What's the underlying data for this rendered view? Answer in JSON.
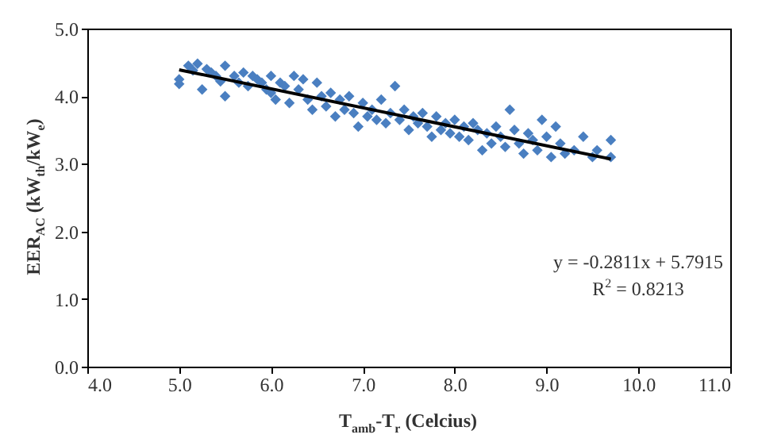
{
  "chart_data": {
    "type": "scatter",
    "xlabel": "T$_{amb}$-T$_{r}$ (Celcius)",
    "ylabel": "EER$_{AC}$ (kW$_{th}$/kW$_{e}$)",
    "xlim": [
      4,
      11
    ],
    "ylim": [
      0,
      5
    ],
    "xticks": [
      {
        "value": 4,
        "label": "4.0"
      },
      {
        "value": 5,
        "label": "5.0"
      },
      {
        "value": 6,
        "label": "6.0"
      },
      {
        "value": 7,
        "label": "7.0"
      },
      {
        "value": 8,
        "label": "8.0"
      },
      {
        "value": 9,
        "label": "9.0"
      },
      {
        "value": 10,
        "label": "10.0"
      },
      {
        "value": 11,
        "label": "11.0"
      }
    ],
    "yticks": [
      {
        "value": 0,
        "label": "0.0"
      },
      {
        "value": 1,
        "label": "1.0"
      },
      {
        "value": 2,
        "label": "2.0"
      },
      {
        "value": 3,
        "label": "3.0"
      },
      {
        "value": 4,
        "label": "4.0"
      },
      {
        "value": 5,
        "label": "5.0"
      }
    ],
    "grid": false,
    "marker": "diamond",
    "annotations": [
      "y = -0.2811x + 5.7915",
      "R$^{2}$ = 0.8213"
    ],
    "series": [
      {
        "color": "#4a7fc1",
        "x": [
          5.0,
          5.0,
          5.1,
          5.15,
          5.2,
          5.25,
          5.3,
          5.35,
          5.4,
          5.45,
          5.5,
          5.5,
          5.6,
          5.65,
          5.7,
          5.75,
          5.8,
          5.85,
          5.9,
          5.95,
          6.0,
          6.0,
          6.05,
          6.1,
          6.15,
          6.2,
          6.25,
          6.3,
          6.35,
          6.4,
          6.45,
          6.5,
          6.55,
          6.6,
          6.65,
          6.7,
          6.75,
          6.8,
          6.85,
          6.9,
          6.95,
          7.0,
          7.05,
          7.1,
          7.15,
          7.2,
          7.25,
          7.3,
          7.35,
          7.4,
          7.45,
          7.5,
          7.55,
          7.6,
          7.65,
          7.7,
          7.75,
          7.8,
          7.85,
          7.9,
          7.95,
          8.0,
          8.05,
          8.1,
          8.15,
          8.2,
          8.25,
          8.3,
          8.35,
          8.4,
          8.45,
          8.5,
          8.55,
          8.6,
          8.65,
          8.7,
          8.75,
          8.8,
          8.85,
          8.9,
          8.95,
          9.0,
          9.05,
          9.1,
          9.15,
          9.2,
          9.3,
          9.4,
          9.5,
          9.55,
          9.7,
          9.7
        ],
        "values": [
          4.18,
          4.25,
          4.45,
          4.38,
          4.48,
          4.1,
          4.4,
          4.35,
          4.3,
          4.22,
          4.0,
          4.45,
          4.3,
          4.2,
          4.35,
          4.15,
          4.3,
          4.25,
          4.2,
          4.1,
          4.3,
          4.05,
          3.95,
          4.2,
          4.15,
          3.9,
          4.3,
          4.1,
          4.25,
          3.95,
          3.8,
          4.2,
          4.0,
          3.85,
          4.05,
          3.7,
          3.95,
          3.8,
          4.0,
          3.75,
          3.55,
          3.9,
          3.7,
          3.8,
          3.65,
          3.95,
          3.6,
          3.75,
          4.15,
          3.65,
          3.8,
          3.5,
          3.7,
          3.6,
          3.75,
          3.55,
          3.4,
          3.7,
          3.5,
          3.6,
          3.45,
          3.65,
          3.4,
          3.55,
          3.35,
          3.6,
          3.5,
          3.2,
          3.45,
          3.3,
          3.55,
          3.4,
          3.25,
          3.8,
          3.5,
          3.3,
          3.15,
          3.45,
          3.35,
          3.2,
          3.65,
          3.4,
          3.1,
          3.55,
          3.3,
          3.15,
          3.2,
          3.4,
          3.1,
          3.2,
          3.35,
          3.1
        ]
      },
      {
        "type": "line",
        "marker": "none",
        "color": "#000000",
        "x": [
          5.0,
          9.7
        ],
        "values": [
          4.39,
          3.07
        ]
      }
    ]
  }
}
